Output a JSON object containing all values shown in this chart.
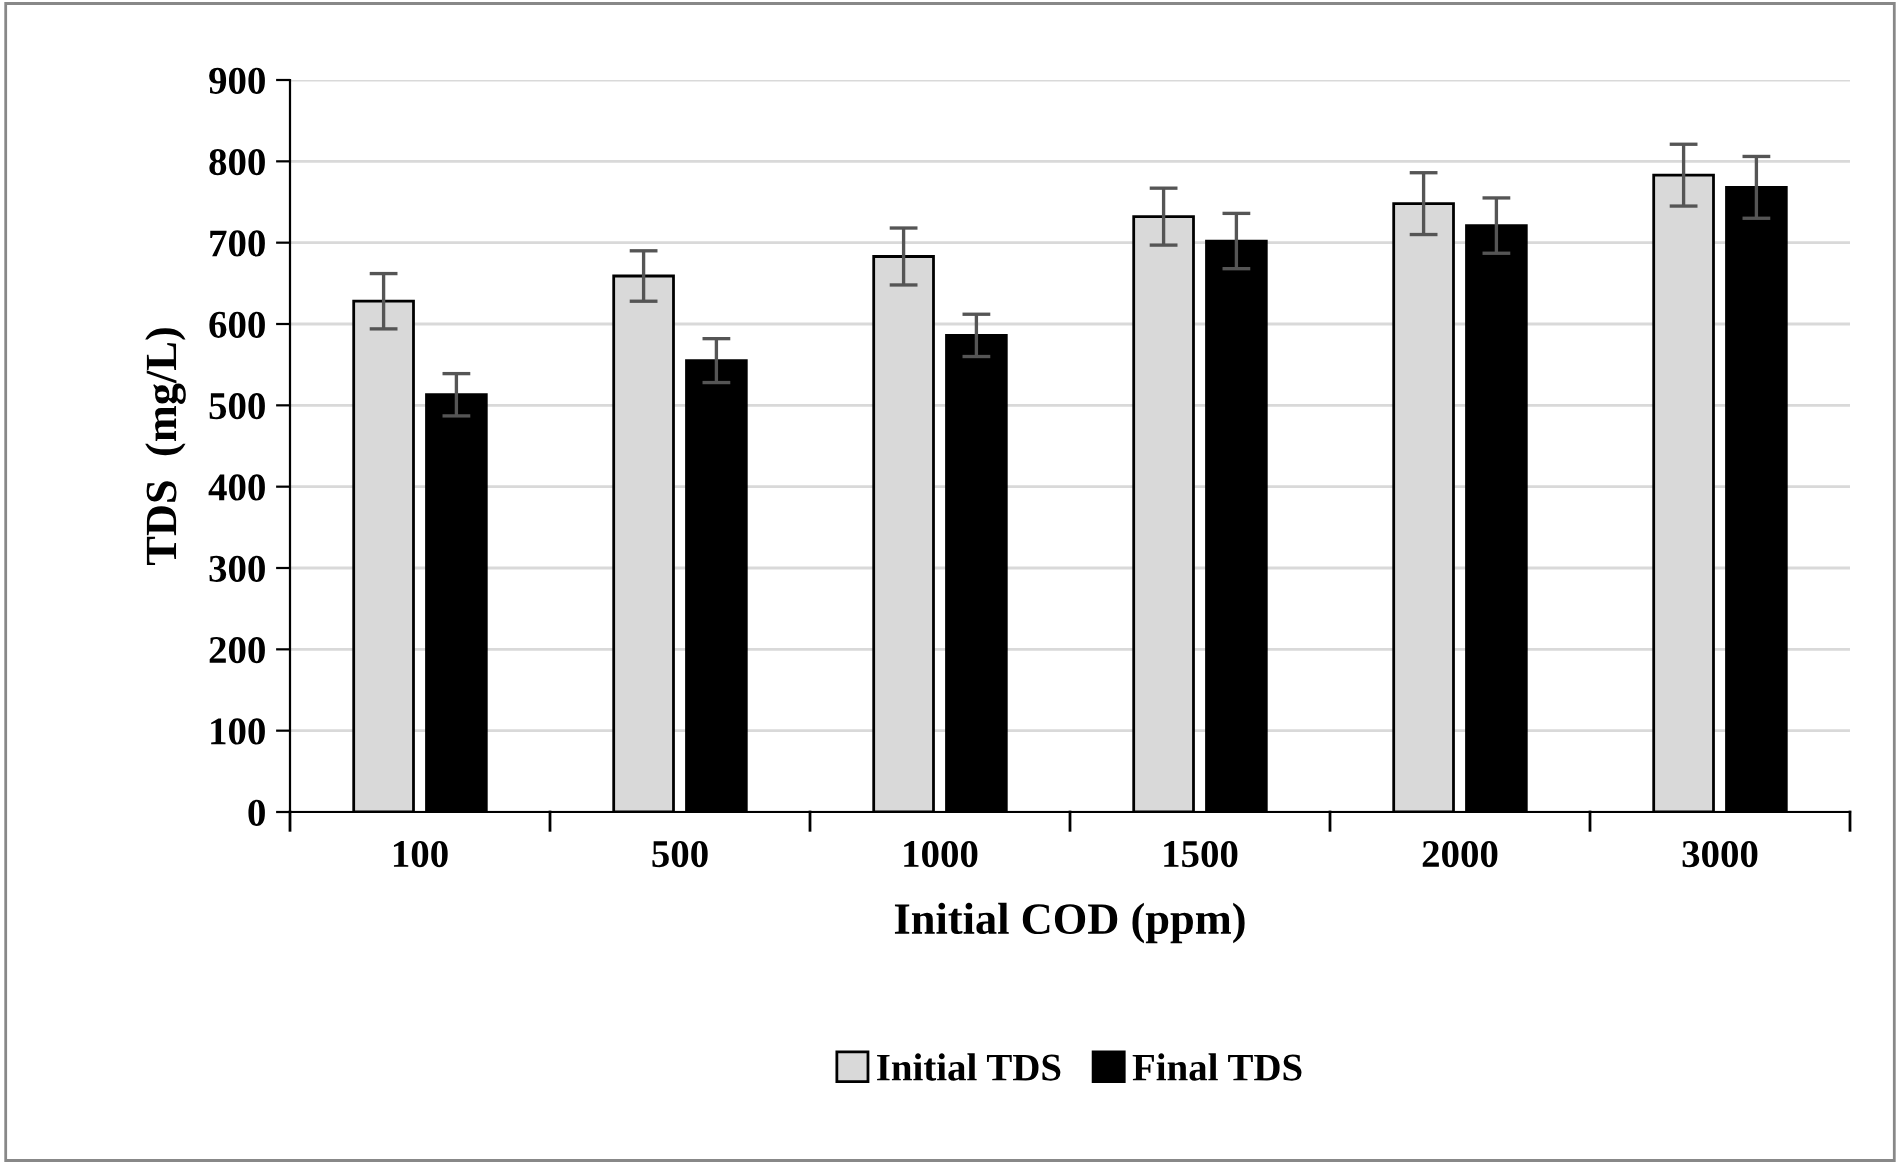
{
  "chart_data": {
    "type": "bar",
    "xlabel": "Initial COD (ppm)",
    "ylabel": "TDS  (mg/L)",
    "categories": [
      "100",
      "500",
      "1000",
      "1500",
      "2000",
      "3000"
    ],
    "series": [
      {
        "name": "Initial TDS",
        "color": "#d9d9d9",
        "values": [
          628,
          659,
          683,
          732,
          748,
          783
        ],
        "errors": [
          34,
          31,
          35,
          35,
          38,
          38
        ]
      },
      {
        "name": "Final TDS",
        "color": "#000000",
        "values": [
          513,
          555,
          586,
          702,
          721,
          768
        ],
        "errors": [
          26,
          27,
          26,
          34,
          34,
          38
        ]
      }
    ],
    "ylim": [
      0,
      900
    ],
    "yticks": [
      0,
      100,
      200,
      300,
      400,
      500,
      600,
      700,
      800,
      900
    ],
    "grid": "y",
    "legend": "bottom"
  }
}
